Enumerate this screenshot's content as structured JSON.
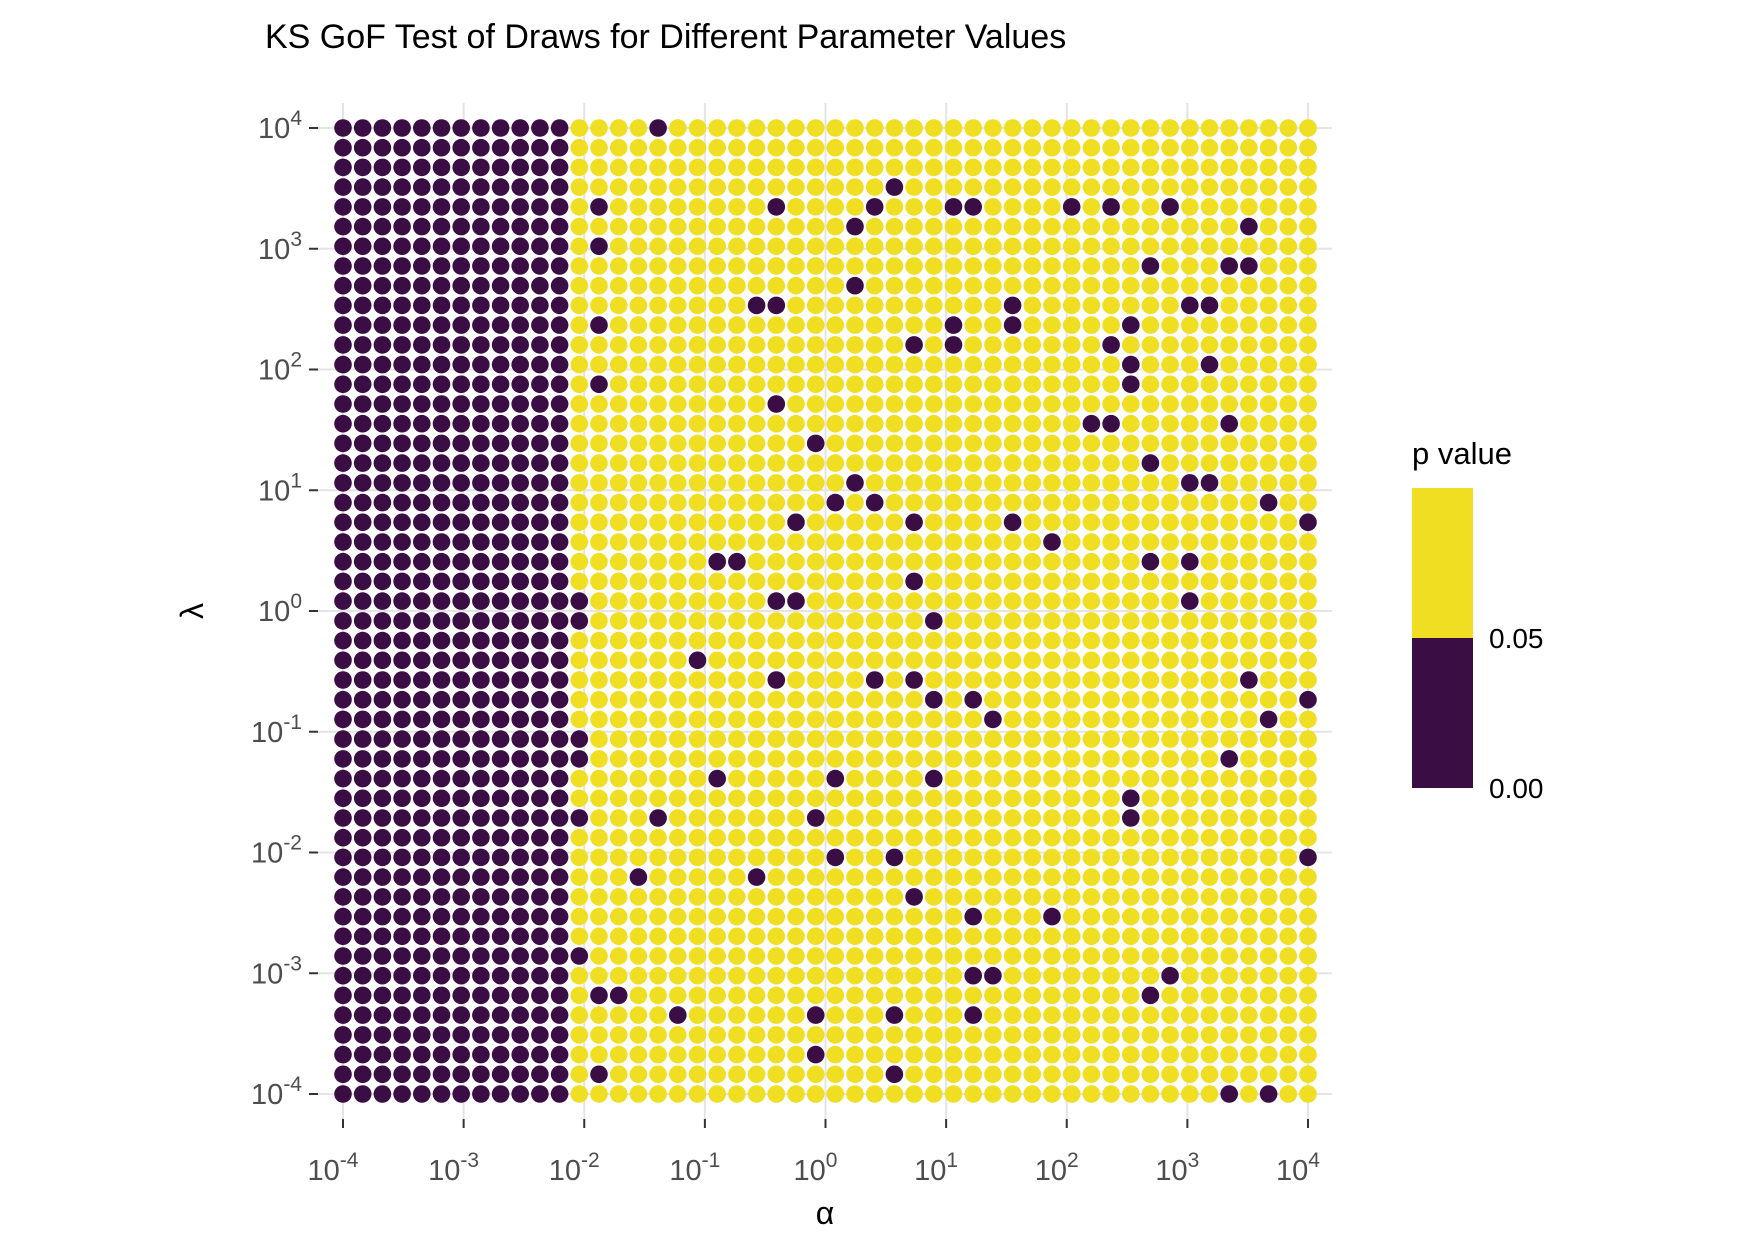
{
  "title": "KS GoF Test of Draws for Different Parameter Values",
  "axes": {
    "x": {
      "label": "α",
      "tick_exponents": [
        -4,
        -3,
        -2,
        -1,
        0,
        1,
        2,
        3,
        4
      ],
      "tick_base": "10"
    },
    "y": {
      "label": "λ",
      "tick_exponents": [
        4,
        3,
        2,
        1,
        0,
        -1,
        -2,
        -3,
        -4
      ],
      "tick_base": "10"
    }
  },
  "legend": {
    "title": "p value",
    "threshold_label": "0.05",
    "min_label": "0.00",
    "color_above_threshold": "#F0DE22",
    "color_below_threshold": "#3B0D45"
  },
  "chart_data": {
    "type": "scatter",
    "title": "KS GoF Test of Draws for Different Parameter Values",
    "xlabel": "α",
    "ylabel": "λ",
    "x_scale": "log10",
    "y_scale": "log10",
    "x_range_log10": [
      -4,
      4
    ],
    "y_range_log10": [
      -4,
      4
    ],
    "grid_points_per_axis": 50,
    "point_meaning": "KS goodness-of-fit p value at each (alpha, lambda) pair; dark = p < 0.05, yellow = p >= 0.05",
    "p_threshold": 0.05,
    "color_significant": "#3B0D45",
    "color_not_significant": "#F0DE22",
    "gridline_color": "#E4E4E4",
    "tick_color": "#333333",
    "indexing_note": "col 0 = alpha 1e-4 ... col 49 = alpha 1e4; row 0 = lambda 1e4 (top) ... row 49 = lambda 1e-4 (bottom)",
    "dark_columns_count": 12,
    "significant_exceptions": [
      [
        16,
        0
      ],
      [
        28,
        3
      ],
      [
        13,
        4
      ],
      [
        22,
        4
      ],
      [
        27,
        4
      ],
      [
        31,
        4
      ],
      [
        32,
        4
      ],
      [
        37,
        4
      ],
      [
        39,
        4
      ],
      [
        42,
        4
      ],
      [
        26,
        5
      ],
      [
        46,
        5
      ],
      [
        13,
        6
      ],
      [
        41,
        7
      ],
      [
        45,
        7
      ],
      [
        46,
        7
      ],
      [
        26,
        8
      ],
      [
        21,
        9
      ],
      [
        22,
        9
      ],
      [
        34,
        9
      ],
      [
        43,
        9
      ],
      [
        44,
        9
      ],
      [
        13,
        10
      ],
      [
        31,
        10
      ],
      [
        34,
        10
      ],
      [
        40,
        10
      ],
      [
        29,
        11
      ],
      [
        31,
        11
      ],
      [
        39,
        11
      ],
      [
        40,
        12
      ],
      [
        44,
        12
      ],
      [
        13,
        13
      ],
      [
        40,
        13
      ],
      [
        22,
        14
      ],
      [
        38,
        15
      ],
      [
        39,
        15
      ],
      [
        45,
        15
      ],
      [
        24,
        16
      ],
      [
        41,
        17
      ],
      [
        26,
        18
      ],
      [
        43,
        18
      ],
      [
        44,
        18
      ],
      [
        25,
        19
      ],
      [
        27,
        19
      ],
      [
        47,
        19
      ],
      [
        23,
        20
      ],
      [
        29,
        20
      ],
      [
        34,
        20
      ],
      [
        49,
        20
      ],
      [
        36,
        21
      ],
      [
        19,
        22
      ],
      [
        20,
        22
      ],
      [
        41,
        22
      ],
      [
        43,
        22
      ],
      [
        29,
        23
      ],
      [
        12,
        24
      ],
      [
        22,
        24
      ],
      [
        23,
        24
      ],
      [
        43,
        24
      ],
      [
        12,
        25
      ],
      [
        30,
        25
      ],
      [
        18,
        27
      ],
      [
        22,
        28
      ],
      [
        27,
        28
      ],
      [
        29,
        28
      ],
      [
        46,
        28
      ],
      [
        30,
        29
      ],
      [
        32,
        29
      ],
      [
        49,
        29
      ],
      [
        33,
        30
      ],
      [
        47,
        30
      ],
      [
        12,
        31
      ],
      [
        12,
        32
      ],
      [
        45,
        32
      ],
      [
        19,
        33
      ],
      [
        25,
        33
      ],
      [
        30,
        33
      ],
      [
        40,
        34
      ],
      [
        12,
        35
      ],
      [
        16,
        35
      ],
      [
        24,
        35
      ],
      [
        40,
        35
      ],
      [
        25,
        37
      ],
      [
        28,
        37
      ],
      [
        49,
        37
      ],
      [
        15,
        38
      ],
      [
        21,
        38
      ],
      [
        29,
        39
      ],
      [
        32,
        40
      ],
      [
        36,
        40
      ],
      [
        12,
        42
      ],
      [
        32,
        43
      ],
      [
        33,
        43
      ],
      [
        42,
        43
      ],
      [
        13,
        44
      ],
      [
        14,
        44
      ],
      [
        41,
        44
      ],
      [
        17,
        45
      ],
      [
        24,
        45
      ],
      [
        28,
        45
      ],
      [
        32,
        45
      ],
      [
        24,
        47
      ],
      [
        13,
        48
      ],
      [
        28,
        48
      ],
      [
        45,
        49
      ],
      [
        47,
        49
      ]
    ]
  }
}
